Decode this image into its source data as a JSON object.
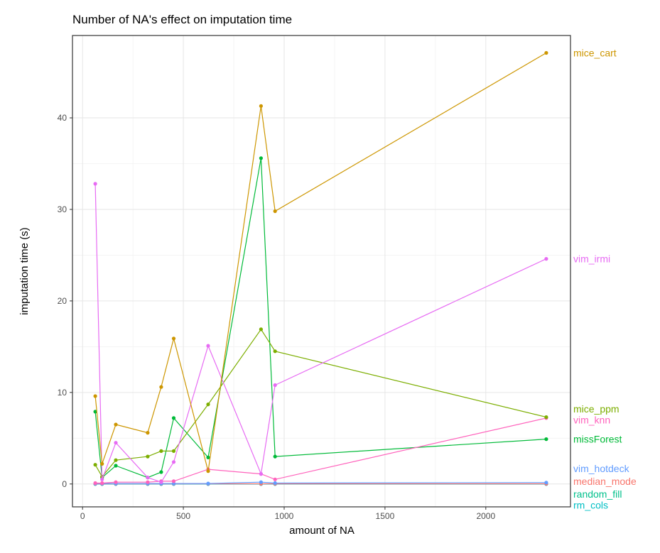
{
  "chart_data": {
    "type": "line",
    "title": "Number of NA's effect on imputation time",
    "xlabel": "amount of NA",
    "ylabel": "imputation time (s)",
    "xlim": [
      -50,
      2420
    ],
    "ylim": [
      -2.5,
      49
    ],
    "xticks": [
      0,
      500,
      1000,
      1500,
      2000
    ],
    "yticks": [
      0,
      10,
      20,
      30,
      40
    ],
    "x_tick_labels": [
      "0",
      "500",
      "1000",
      "1500",
      "2000"
    ],
    "y_tick_labels": [
      "0",
      "10",
      "20",
      "30",
      "40"
    ],
    "grid": true,
    "legend": "direct labels at right",
    "series": [
      {
        "name": "mice_cart",
        "color": "#CD9600",
        "label_y": 47.1,
        "points": [
          [
            63,
            9.6
          ],
          [
            97,
            2.2
          ],
          [
            165,
            6.5
          ],
          [
            323,
            5.6
          ],
          [
            390,
            10.6
          ],
          [
            452,
            15.9
          ],
          [
            623,
            1.4
          ],
          [
            885,
            41.3
          ],
          [
            955,
            29.8
          ],
          [
            2300,
            47.1
          ]
        ]
      },
      {
        "name": "vim_irmi",
        "color": "#E76BF3",
        "label_y": 24.6,
        "points": [
          [
            63,
            32.8
          ],
          [
            97,
            0.5
          ],
          [
            165,
            4.5
          ],
          [
            323,
            0.7
          ],
          [
            390,
            0.2
          ],
          [
            452,
            2.4
          ],
          [
            623,
            15.1
          ],
          [
            885,
            1.1
          ],
          [
            955,
            10.8
          ],
          [
            2300,
            24.6
          ]
        ]
      },
      {
        "name": "mice_ppm",
        "color": "#7CAE00",
        "label_y": 8.2,
        "points": [
          [
            63,
            2.1
          ],
          [
            97,
            0.8
          ],
          [
            165,
            2.6
          ],
          [
            323,
            3.0
          ],
          [
            390,
            3.6
          ],
          [
            452,
            3.6
          ],
          [
            623,
            8.7
          ],
          [
            885,
            16.9
          ],
          [
            955,
            14.5
          ],
          [
            2300,
            7.3
          ]
        ]
      },
      {
        "name": "vim_knn",
        "color": "#FF62BC",
        "label_y": 7.0,
        "points": [
          [
            63,
            0.1
          ],
          [
            97,
            0.1
          ],
          [
            165,
            0.2
          ],
          [
            323,
            0.2
          ],
          [
            390,
            0.3
          ],
          [
            452,
            0.3
          ],
          [
            623,
            1.6
          ],
          [
            885,
            1.1
          ],
          [
            955,
            0.5
          ],
          [
            2300,
            7.2
          ]
        ]
      },
      {
        "name": "missForest",
        "color": "#00BA38",
        "label_y": 4.9,
        "points": [
          [
            63,
            7.9
          ],
          [
            97,
            0.7
          ],
          [
            165,
            2.0
          ],
          [
            323,
            0.7
          ],
          [
            390,
            1.3
          ],
          [
            452,
            7.2
          ],
          [
            623,
            2.9
          ],
          [
            885,
            35.6
          ],
          [
            955,
            3.0
          ],
          [
            2300,
            4.9
          ]
        ]
      },
      {
        "name": "vim_hotdeck",
        "color": "#619CFF",
        "label_y": 1.7,
        "points": [
          [
            63,
            0.05
          ],
          [
            97,
            0.05
          ],
          [
            165,
            0.05
          ],
          [
            323,
            0.05
          ],
          [
            390,
            0.05
          ],
          [
            452,
            0.05
          ],
          [
            623,
            0.05
          ],
          [
            885,
            0.2
          ],
          [
            955,
            0.1
          ],
          [
            2300,
            0.15
          ]
        ]
      },
      {
        "name": "median_mode",
        "color": "#F8766D",
        "label_y": 0.3,
        "points": [
          [
            63,
            0.02
          ],
          [
            97,
            0.02
          ],
          [
            165,
            0.02
          ],
          [
            323,
            0.02
          ],
          [
            390,
            0.02
          ],
          [
            452,
            0.02
          ],
          [
            623,
            0.02
          ],
          [
            885,
            0.02
          ],
          [
            955,
            0.02
          ],
          [
            2300,
            0.02
          ]
        ]
      },
      {
        "name": "random_fill",
        "color": "#00BFC4",
        "label_y": -1.1,
        "points": [
          [
            63,
            0.0
          ],
          [
            97,
            0.0
          ],
          [
            165,
            0.0
          ],
          [
            323,
            0.0
          ],
          [
            390,
            0.0
          ],
          [
            452,
            0.0
          ],
          [
            623,
            0.0
          ],
          [
            885,
            0.0
          ],
          [
            955,
            0.0
          ],
          [
            2300,
            0.0
          ]
        ]
      },
      {
        "name": "rm_cols",
        "color": "#00B0F6",
        "label_y": -2.3,
        "points": [
          [
            63,
            0.0
          ],
          [
            97,
            0.0
          ],
          [
            165,
            0.0
          ],
          [
            323,
            0.0
          ],
          [
            390,
            0.0
          ],
          [
            452,
            0.0
          ],
          [
            623,
            0.0
          ],
          [
            885,
            0.0
          ],
          [
            955,
            0.0
          ],
          [
            2300,
            0.0
          ]
        ]
      }
    ]
  },
  "colors": {
    "random_fill_label": "#00C08B",
    "rm_cols_label": "#00BFC4"
  }
}
